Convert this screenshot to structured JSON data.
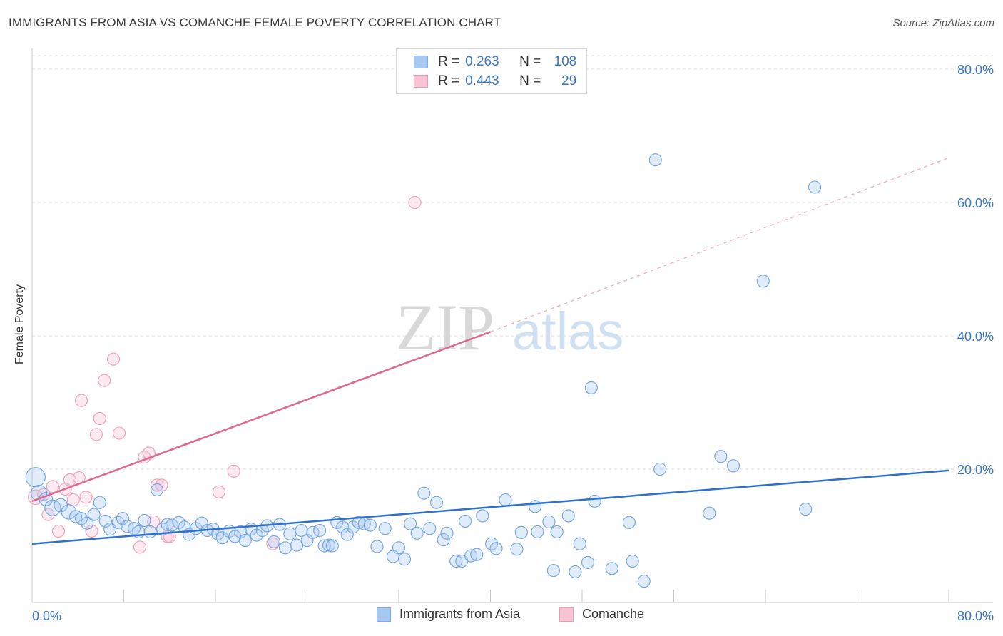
{
  "title": "IMMIGRANTS FROM ASIA VS COMANCHE FEMALE POVERTY CORRELATION CHART",
  "source": "Source: ZipAtlas.com",
  "watermark": {
    "zip": "ZIP",
    "atlas": "atlas"
  },
  "legend_top": {
    "rows": [
      {
        "r_label": "R =",
        "r_value": "0.263",
        "n_label": "N =",
        "n_value": "108",
        "color": "#a9c8f0",
        "border": "#7eaee6"
      },
      {
        "r_label": "R =",
        "r_value": "0.443",
        "n_label": "N =",
        "n_value": "29",
        "color": "#f8c4d4",
        "border": "#ee9ab4"
      }
    ]
  },
  "legend_bottom": {
    "items": [
      {
        "label": "Immigrants from Asia",
        "color": "#a9c8f0",
        "border": "#7eaee6"
      },
      {
        "label": "Comanche",
        "color": "#f8c4d4",
        "border": "#ee9ab4"
      }
    ]
  },
  "chart_data": {
    "type": "scatter",
    "title": "IMMIGRANTS FROM ASIA VS COMANCHE FEMALE POVERTY CORRELATION CHART",
    "xlabel": "",
    "ylabel": "Female Poverty",
    "xlim": [
      0,
      80
    ],
    "ylim": [
      0,
      80
    ],
    "x_tick_labels": [
      "0.0%",
      "80.0%"
    ],
    "y_tick_labels": [
      "20.0%",
      "40.0%",
      "60.0%",
      "80.0%"
    ],
    "y_ticks": [
      20,
      40,
      60,
      80
    ],
    "x_minor_ticks": [
      0,
      8,
      16,
      24,
      32,
      40,
      48,
      56,
      64,
      72,
      80
    ],
    "grid": true,
    "colors": {
      "asia": "#6fa3e0",
      "asia_line": "#2f70cf",
      "comanche": "#ef9db6",
      "comanche_line": "#e0688f",
      "axis_label": "#3a76c4"
    },
    "series": [
      {
        "name": "Immigrants from Asia",
        "trend": {
          "x0": 0,
          "y0": 8.8,
          "x1": 80,
          "y1": 19.8
        },
        "points": [
          [
            0.3,
            18.8,
            1.6
          ],
          [
            0.6,
            16.4,
            1.3
          ],
          [
            1.2,
            15.5,
            1.1
          ],
          [
            1.8,
            14.2,
            1.3
          ],
          [
            2.5,
            14.6,
            1.1
          ],
          [
            3.2,
            13.6,
            1.2
          ],
          [
            3.8,
            12.9,
            1.0
          ],
          [
            4.3,
            12.6,
            1.0
          ],
          [
            4.8,
            11.9,
            1.0
          ],
          [
            5.4,
            13.2,
            1.0
          ],
          [
            5.9,
            15.0,
            1.0
          ],
          [
            6.4,
            12.2,
            1.0
          ],
          [
            6.8,
            11.0,
            1.0
          ],
          [
            7.5,
            12.0,
            1.0
          ],
          [
            7.9,
            12.6,
            1.0
          ],
          [
            8.3,
            11.4,
            1.0
          ],
          [
            8.9,
            11.1,
            1.0
          ],
          [
            9.3,
            10.6,
            1.0
          ],
          [
            9.8,
            12.3,
            1.0
          ],
          [
            10.3,
            10.6,
            1.0
          ],
          [
            10.9,
            16.9,
            1.0
          ],
          [
            11.4,
            11.0,
            1.0
          ],
          [
            11.8,
            11.7,
            1.0
          ],
          [
            12.2,
            11.6,
            1.0
          ],
          [
            12.8,
            12.0,
            1.0
          ],
          [
            13.3,
            11.3,
            1.0
          ],
          [
            13.7,
            10.2,
            1.0
          ],
          [
            14.3,
            11.1,
            1.0
          ],
          [
            14.8,
            11.9,
            1.0
          ],
          [
            15.3,
            10.8,
            1.0
          ],
          [
            15.8,
            11.0,
            1.0
          ],
          [
            16.2,
            10.3,
            1.0
          ],
          [
            16.6,
            9.7,
            1.0
          ],
          [
            17.2,
            10.7,
            1.0
          ],
          [
            17.7,
            9.9,
            1.0
          ],
          [
            18.2,
            10.6,
            1.0
          ],
          [
            18.6,
            9.3,
            1.0
          ],
          [
            19.1,
            11.0,
            1.0
          ],
          [
            19.6,
            10.1,
            1.0
          ],
          [
            20.1,
            10.8,
            1.0
          ],
          [
            20.5,
            11.5,
            1.0
          ],
          [
            21.1,
            9.1,
            1.0
          ],
          [
            21.6,
            11.7,
            1.0
          ],
          [
            22.1,
            8.2,
            1.0
          ],
          [
            22.5,
            10.3,
            1.0
          ],
          [
            23.1,
            8.6,
            1.0
          ],
          [
            23.5,
            10.8,
            1.0
          ],
          [
            24.0,
            9.3,
            1.0
          ],
          [
            24.5,
            10.5,
            1.0
          ],
          [
            25.1,
            10.8,
            1.0
          ],
          [
            25.5,
            8.5,
            1.0
          ],
          [
            25.9,
            8.6,
            1.0
          ],
          [
            26.2,
            8.5,
            1.0
          ],
          [
            26.6,
            12.0,
            1.0
          ],
          [
            27.1,
            11.3,
            1.0
          ],
          [
            27.5,
            10.2,
            1.0
          ],
          [
            28.0,
            11.3,
            1.0
          ],
          [
            28.5,
            12.0,
            1.0
          ],
          [
            29.0,
            11.8,
            1.0
          ],
          [
            29.5,
            11.6,
            1.0
          ],
          [
            30.1,
            8.4,
            1.0
          ],
          [
            30.8,
            11.1,
            1.0
          ],
          [
            31.5,
            6.9,
            1.0
          ],
          [
            32.0,
            8.2,
            1.0
          ],
          [
            32.5,
            6.5,
            1.0
          ],
          [
            33.0,
            11.8,
            1.0
          ],
          [
            33.6,
            10.4,
            1.0
          ],
          [
            34.2,
            16.4,
            1.0
          ],
          [
            34.7,
            11.1,
            1.0
          ],
          [
            35.3,
            15.0,
            1.0
          ],
          [
            35.9,
            9.4,
            1.0
          ],
          [
            36.2,
            10.4,
            1.0
          ],
          [
            37.0,
            6.2,
            1.0
          ],
          [
            37.5,
            6.2,
            1.0
          ],
          [
            37.8,
            12.2,
            1.0
          ],
          [
            38.3,
            7.0,
            1.0
          ],
          [
            38.8,
            7.2,
            1.0
          ],
          [
            39.3,
            13.0,
            1.0
          ],
          [
            40.1,
            8.8,
            1.0
          ],
          [
            40.5,
            8.1,
            1.0
          ],
          [
            41.3,
            15.4,
            1.0
          ],
          [
            42.3,
            8.0,
            1.0
          ],
          [
            42.7,
            10.5,
            1.0
          ],
          [
            43.9,
            14.4,
            1.0
          ],
          [
            44.1,
            10.6,
            1.0
          ],
          [
            45.1,
            12.1,
            1.0
          ],
          [
            45.5,
            4.8,
            1.0
          ],
          [
            45.8,
            10.6,
            1.0
          ],
          [
            46.8,
            13.0,
            1.0
          ],
          [
            47.4,
            4.6,
            1.0
          ],
          [
            47.8,
            8.8,
            1.0
          ],
          [
            48.5,
            6.0,
            1.0
          ],
          [
            48.8,
            32.2,
            1.0
          ],
          [
            49.1,
            15.2,
            1.0
          ],
          [
            50.6,
            5.1,
            1.0
          ],
          [
            52.1,
            12.0,
            1.0
          ],
          [
            52.4,
            6.2,
            1.0
          ],
          [
            53.4,
            3.2,
            1.0
          ],
          [
            54.4,
            66.4,
            1.0
          ],
          [
            54.8,
            20.0,
            1.0
          ],
          [
            59.1,
            13.4,
            1.0
          ],
          [
            60.1,
            21.9,
            1.0
          ],
          [
            61.2,
            20.5,
            1.0
          ],
          [
            63.8,
            48.2,
            1.0
          ],
          [
            67.5,
            14.0,
            1.0
          ],
          [
            68.3,
            62.3,
            1.0
          ]
        ]
      },
      {
        "name": "Comanche",
        "trend": {
          "x0": 0,
          "y0": 15.2,
          "x1": 40,
          "y1": 40.6,
          "dash_to": {
            "x": 80,
            "y": 66.7
          }
        },
        "points": [
          [
            0.3,
            15.8,
            1.2
          ],
          [
            1.0,
            16.2,
            1.0
          ],
          [
            1.4,
            13.2,
            1.0
          ],
          [
            1.8,
            17.4,
            1.0
          ],
          [
            2.3,
            10.7,
            1.0
          ],
          [
            2.9,
            17.0,
            1.0
          ],
          [
            3.3,
            18.4,
            1.0
          ],
          [
            3.6,
            15.4,
            1.0
          ],
          [
            4.1,
            18.7,
            1.0
          ],
          [
            4.3,
            30.3,
            1.0
          ],
          [
            4.7,
            15.8,
            1.0
          ],
          [
            5.2,
            10.7,
            1.0
          ],
          [
            5.6,
            25.2,
            1.0
          ],
          [
            5.9,
            27.6,
            1.0
          ],
          [
            6.3,
            33.3,
            1.0
          ],
          [
            7.1,
            36.5,
            1.0
          ],
          [
            7.6,
            25.4,
            1.0
          ],
          [
            9.4,
            8.3,
            1.0
          ],
          [
            9.8,
            21.8,
            1.0
          ],
          [
            10.2,
            22.4,
            1.0
          ],
          [
            10.6,
            12.1,
            1.0
          ],
          [
            10.9,
            17.6,
            1.0
          ],
          [
            11.3,
            17.6,
            1.0
          ],
          [
            11.8,
            9.9,
            1.0
          ],
          [
            12.0,
            9.9,
            1.0
          ],
          [
            16.3,
            16.6,
            1.0
          ],
          [
            17.6,
            19.7,
            1.0
          ],
          [
            21.0,
            8.8,
            1.0
          ],
          [
            33.4,
            60.0,
            1.0
          ]
        ]
      }
    ]
  }
}
